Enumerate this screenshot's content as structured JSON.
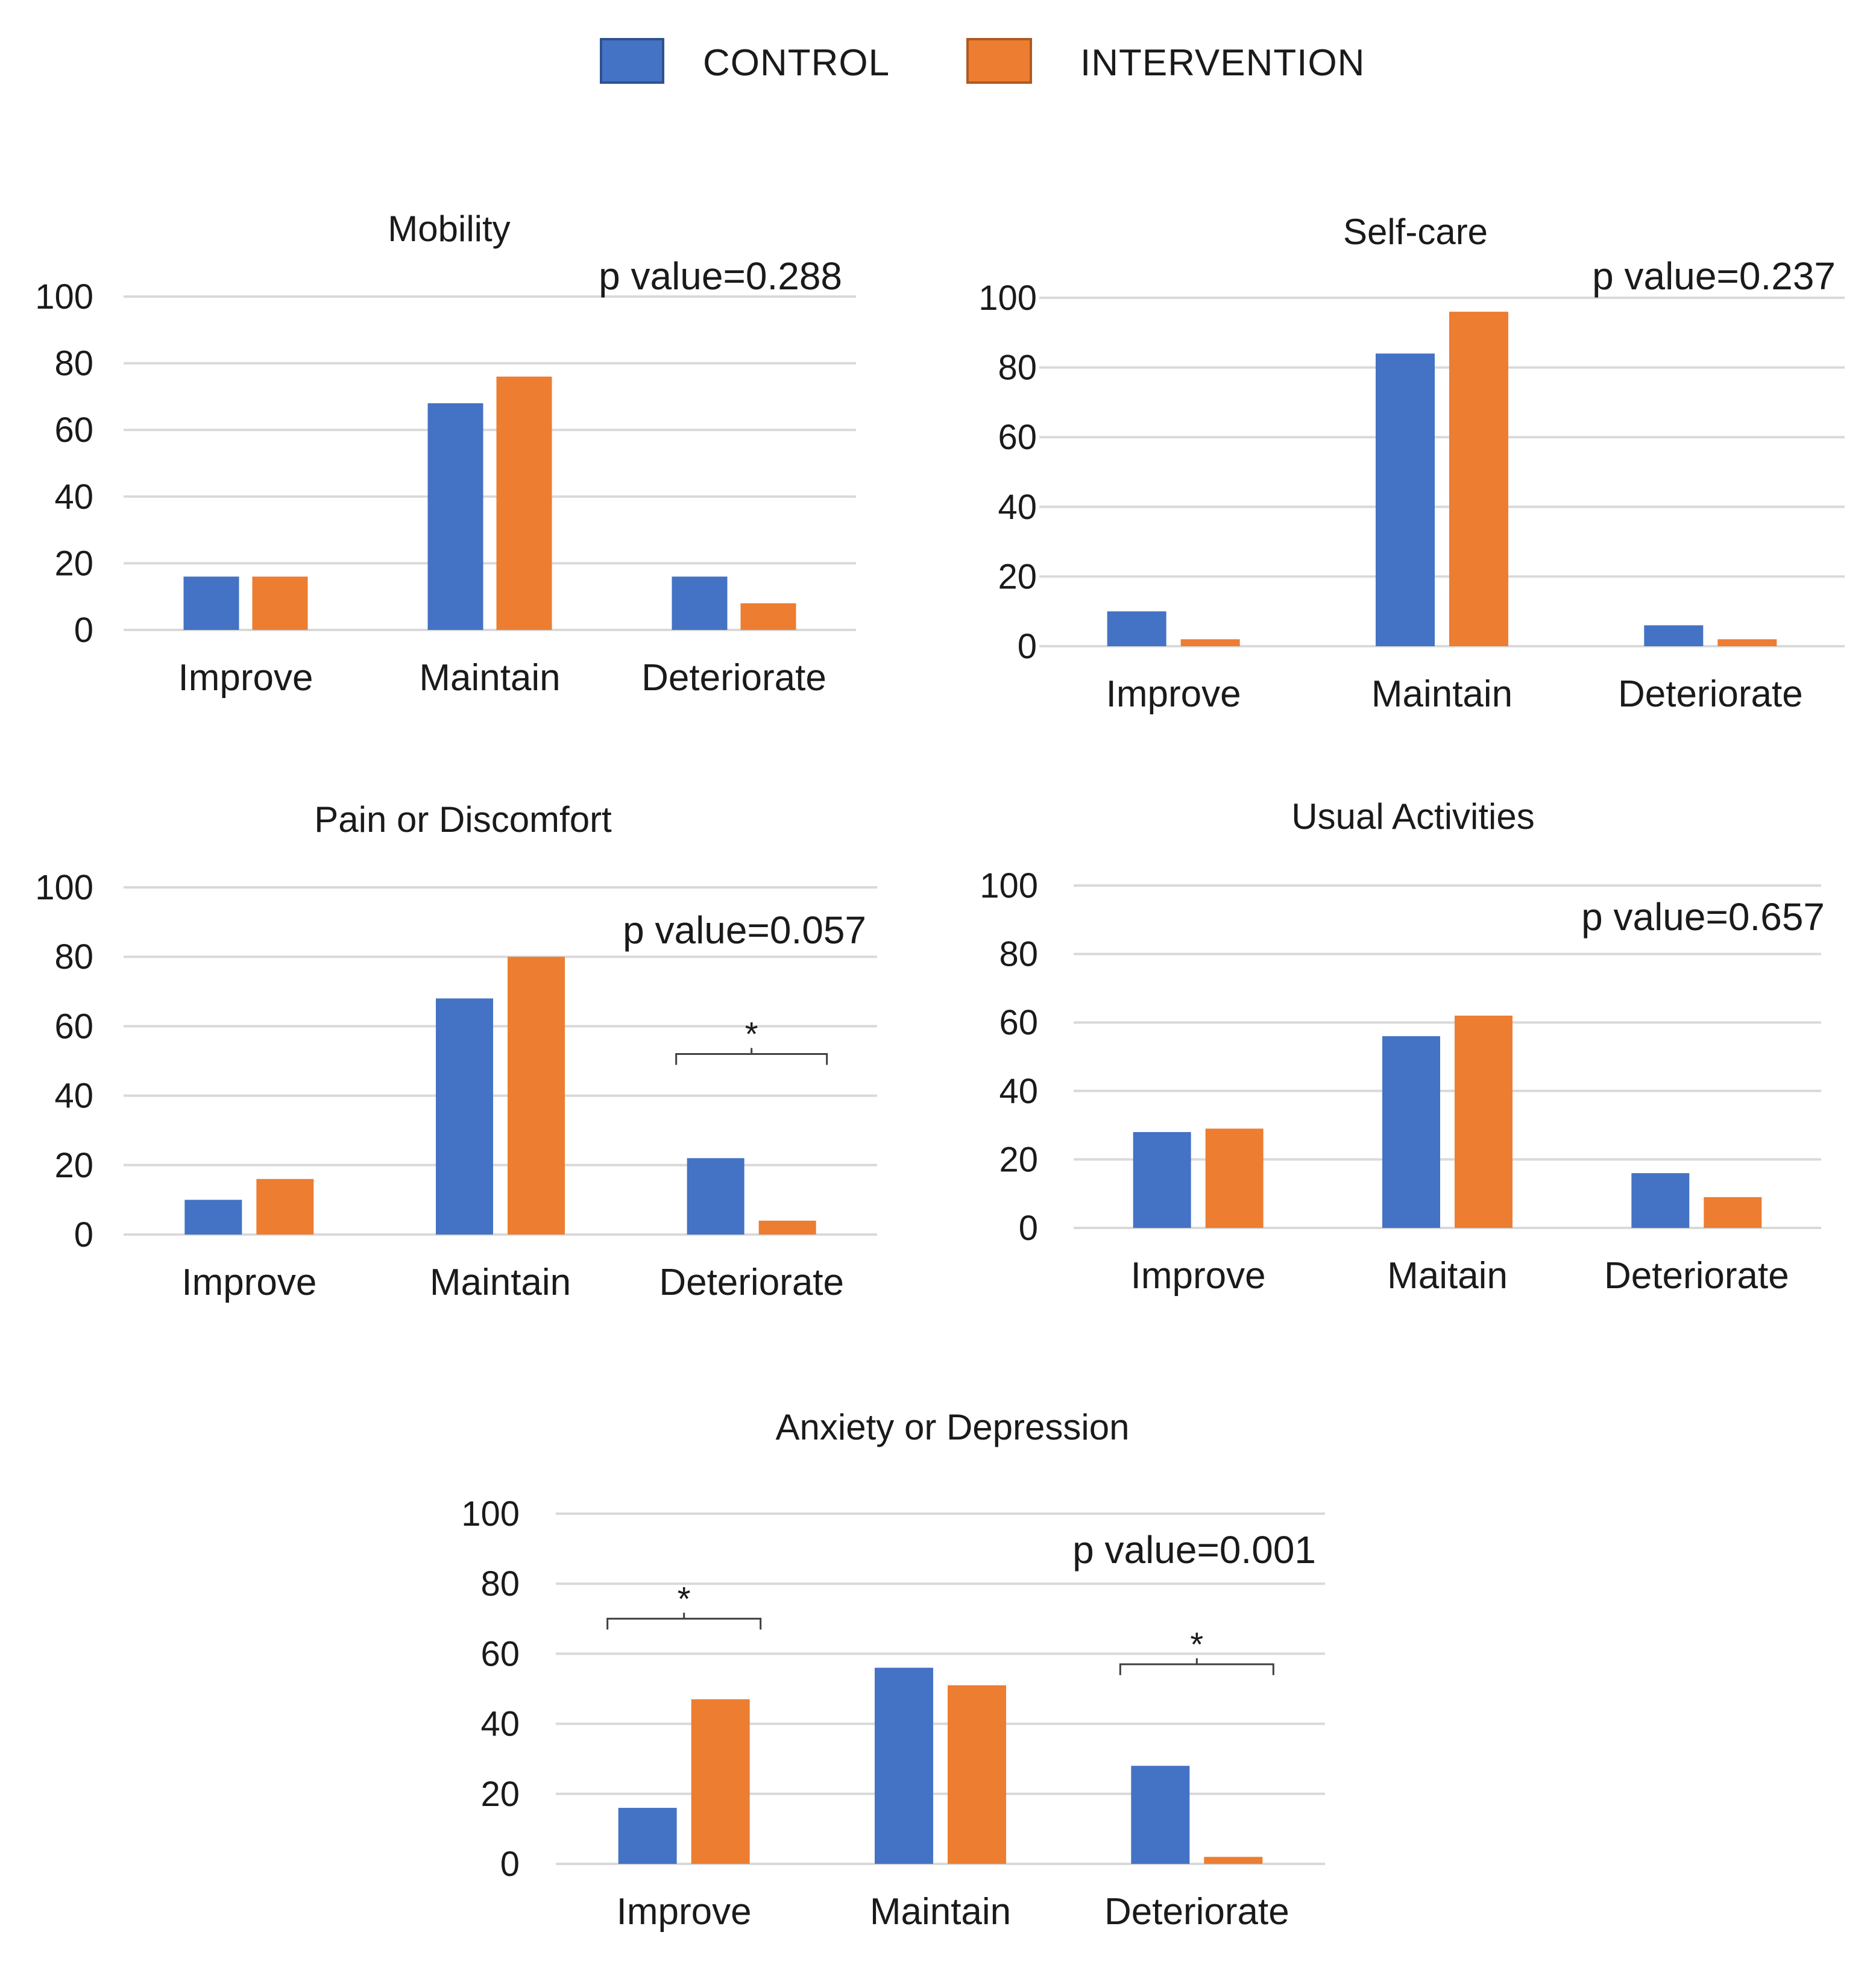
{
  "legend": {
    "items": [
      {
        "label": "CONTROL",
        "color": "#4472C4"
      },
      {
        "label": "INTERVENTION",
        "color": "#ED7D31"
      }
    ]
  },
  "chart_data": [
    {
      "type": "bar",
      "title": "Mobility",
      "p_value": "p value=0.288",
      "categories": [
        "Improve",
        "Maintain",
        "Deteriorate"
      ],
      "series": [
        {
          "name": "CONTROL",
          "values": [
            16,
            68,
            16
          ]
        },
        {
          "name": "INTERVENTION",
          "values": [
            16,
            76,
            8
          ]
        }
      ],
      "ylim": [
        0,
        100
      ],
      "yticks": [
        0,
        20,
        40,
        60,
        80,
        100
      ],
      "significance": []
    },
    {
      "type": "bar",
      "title": "Self-care",
      "p_value": "p value=0.237",
      "categories": [
        "Improve",
        "Maintain",
        "Deteriorate"
      ],
      "series": [
        {
          "name": "CONTROL",
          "values": [
            10,
            84,
            6
          ]
        },
        {
          "name": "INTERVENTION",
          "values": [
            2,
            96,
            2
          ]
        }
      ],
      "ylim": [
        0,
        100
      ],
      "yticks": [
        0,
        20,
        40,
        60,
        80,
        100
      ],
      "significance": []
    },
    {
      "type": "bar",
      "title": "Pain or Discomfort",
      "p_value": "p value=0.057",
      "categories": [
        "Improve",
        "Maintain",
        "Deteriorate"
      ],
      "series": [
        {
          "name": "CONTROL",
          "values": [
            10,
            68,
            22
          ]
        },
        {
          "name": "INTERVENTION",
          "values": [
            16,
            80,
            4
          ]
        }
      ],
      "ylim": [
        0,
        100
      ],
      "yticks": [
        0,
        20,
        40,
        60,
        80,
        100
      ],
      "significance": [
        {
          "category": 2,
          "y": 52,
          "label": "*"
        }
      ]
    },
    {
      "type": "bar",
      "title": "Usual Activities",
      "p_value": "p value=0.657",
      "categories": [
        "Improve",
        "Maitain",
        "Deteriorate"
      ],
      "series": [
        {
          "name": "CONTROL",
          "values": [
            28,
            56,
            16
          ]
        },
        {
          "name": "INTERVENTION",
          "values": [
            29,
            62,
            9
          ]
        }
      ],
      "ylim": [
        0,
        100
      ],
      "yticks": [
        0,
        20,
        40,
        60,
        80,
        100
      ],
      "significance": []
    },
    {
      "type": "bar",
      "title": "Anxiety or Depression",
      "p_value": "p value=0.001",
      "categories": [
        "Improve",
        "Maintain",
        "Deteriorate"
      ],
      "series": [
        {
          "name": "CONTROL",
          "values": [
            16,
            56,
            28
          ]
        },
        {
          "name": "INTERVENTION",
          "values": [
            47,
            51,
            2
          ]
        }
      ],
      "ylim": [
        0,
        100
      ],
      "yticks": [
        0,
        20,
        40,
        60,
        80,
        100
      ],
      "significance": [
        {
          "category": 0,
          "y": 70,
          "label": "*"
        },
        {
          "category": 2,
          "y": 57,
          "label": "*"
        }
      ]
    }
  ]
}
